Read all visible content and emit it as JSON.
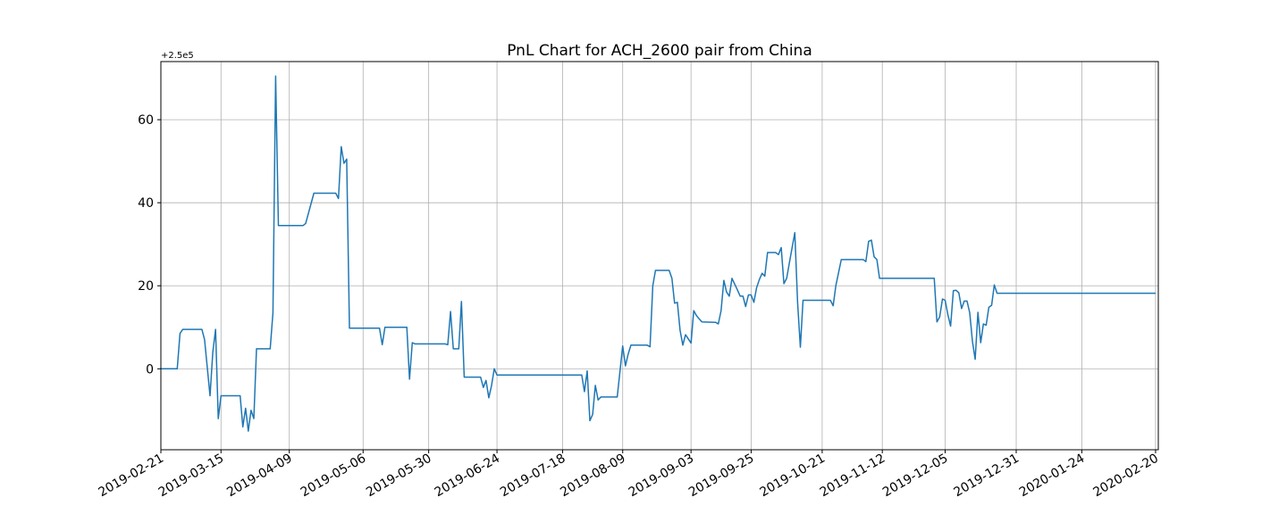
{
  "chart_data": {
    "type": "line",
    "title": "PnL Chart for ACH_2600 pair from China",
    "xlabel": "",
    "ylabel": "",
    "y_offset_label": "+2.5e5",
    "y_offset": 250000,
    "x_type": "date",
    "xlim": [
      "2019-02-21",
      "2020-02-21"
    ],
    "ylim": [
      -19.5,
      74
    ],
    "x_ticks": [
      "2019-02-21",
      "2019-03-15",
      "2019-04-09",
      "2019-05-06",
      "2019-05-30",
      "2019-06-24",
      "2019-07-18",
      "2019-08-09",
      "2019-09-03",
      "2019-09-25",
      "2019-10-21",
      "2019-11-12",
      "2019-12-05",
      "2019-12-31",
      "2020-01-24",
      "2020-02-20"
    ],
    "y_ticks": [
      "0",
      "20",
      "40",
      "60"
    ],
    "y_tick_values": [
      0,
      20,
      40,
      60
    ],
    "grid": true,
    "legend": "none",
    "series": [
      {
        "color": "#1f77b4",
        "points": [
          [
            "2019-02-21",
            0
          ],
          [
            "2019-02-27",
            0
          ],
          [
            "2019-02-28",
            8.5
          ],
          [
            "2019-03-01",
            9.5
          ],
          [
            "2019-03-08",
            9.5
          ],
          [
            "2019-03-09",
            7
          ],
          [
            "2019-03-11",
            -6.5
          ],
          [
            "2019-03-12",
            4
          ],
          [
            "2019-03-13",
            9.5
          ],
          [
            "2019-03-14",
            -12
          ],
          [
            "2019-03-15",
            -6.5
          ],
          [
            "2019-03-22",
            -6.5
          ],
          [
            "2019-03-23",
            -14
          ],
          [
            "2019-03-24",
            -9.5
          ],
          [
            "2019-03-25",
            -15
          ],
          [
            "2019-03-26",
            -10
          ],
          [
            "2019-03-27",
            -12
          ],
          [
            "2019-03-28",
            4.8
          ],
          [
            "2019-04-02",
            4.8
          ],
          [
            "2019-04-03",
            13.5
          ],
          [
            "2019-04-04",
            70.5
          ],
          [
            "2019-04-05",
            34.5
          ],
          [
            "2019-04-14",
            34.5
          ],
          [
            "2019-04-15",
            35
          ],
          [
            "2019-04-18",
            42.3
          ],
          [
            "2019-04-26",
            42.3
          ],
          [
            "2019-04-27",
            41
          ],
          [
            "2019-04-28",
            53.5
          ],
          [
            "2019-04-29",
            49.5
          ],
          [
            "2019-04-30",
            50.5
          ],
          [
            "2019-05-01",
            9.8
          ],
          [
            "2019-05-12",
            9.8
          ],
          [
            "2019-05-13",
            5.8
          ],
          [
            "2019-05-14",
            10
          ],
          [
            "2019-05-22",
            10
          ],
          [
            "2019-05-23",
            -2.5
          ],
          [
            "2019-05-24",
            6.3
          ],
          [
            "2019-05-25",
            6
          ],
          [
            "2019-06-05",
            6
          ],
          [
            "2019-06-06",
            5.8
          ],
          [
            "2019-06-07",
            13.8
          ],
          [
            "2019-06-08",
            4.8
          ],
          [
            "2019-06-10",
            4.8
          ],
          [
            "2019-06-11",
            16.2
          ],
          [
            "2019-06-12",
            -2
          ],
          [
            "2019-06-18",
            -2
          ],
          [
            "2019-06-19",
            -4.5
          ],
          [
            "2019-06-20",
            -2.8
          ],
          [
            "2019-06-21",
            -7
          ],
          [
            "2019-06-22",
            -4
          ],
          [
            "2019-06-23",
            0
          ],
          [
            "2019-06-24",
            -1.5
          ],
          [
            "2019-07-25",
            -1.5
          ],
          [
            "2019-07-26",
            -5.5
          ],
          [
            "2019-07-27",
            -0.5
          ],
          [
            "2019-07-28",
            -12.5
          ],
          [
            "2019-07-29",
            -11
          ],
          [
            "2019-07-30",
            -4
          ],
          [
            "2019-07-31",
            -7.5
          ],
          [
            "2019-08-01",
            -6.8
          ],
          [
            "2019-08-07",
            -6.8
          ],
          [
            "2019-08-09",
            5.5
          ],
          [
            "2019-08-10",
            0.7
          ],
          [
            "2019-08-11",
            3.5
          ],
          [
            "2019-08-12",
            5.7
          ],
          [
            "2019-08-18",
            5.7
          ],
          [
            "2019-08-19",
            5.3
          ],
          [
            "2019-08-20",
            20
          ],
          [
            "2019-08-21",
            23.7
          ],
          [
            "2019-08-26",
            23.7
          ],
          [
            "2019-08-27",
            21.8
          ],
          [
            "2019-08-28",
            15.8
          ],
          [
            "2019-08-29",
            16
          ],
          [
            "2019-08-30",
            9.3
          ],
          [
            "2019-08-31",
            5.7
          ],
          [
            "2019-09-01",
            8.2
          ],
          [
            "2019-09-03",
            6.2
          ],
          [
            "2019-09-04",
            14
          ],
          [
            "2019-09-05",
            12.8
          ],
          [
            "2019-09-06",
            12
          ],
          [
            "2019-09-07",
            11.3
          ],
          [
            "2019-09-12",
            11.2
          ],
          [
            "2019-09-13",
            10.8
          ],
          [
            "2019-09-14",
            14
          ],
          [
            "2019-09-15",
            21.3
          ],
          [
            "2019-09-16",
            18.5
          ],
          [
            "2019-09-17",
            17.5
          ],
          [
            "2019-09-18",
            21.8
          ],
          [
            "2019-09-20",
            19
          ],
          [
            "2019-09-21",
            17.5
          ],
          [
            "2019-09-22",
            17.5
          ],
          [
            "2019-09-23",
            15
          ],
          [
            "2019-09-24",
            17.8
          ],
          [
            "2019-09-25",
            17.8
          ],
          [
            "2019-09-26",
            16
          ],
          [
            "2019-09-27",
            19.5
          ],
          [
            "2019-09-28",
            21.5
          ],
          [
            "2019-09-29",
            23
          ],
          [
            "2019-09-30",
            22.3
          ],
          [
            "2019-10-01",
            28
          ],
          [
            "2019-10-04",
            28
          ],
          [
            "2019-10-05",
            27.5
          ],
          [
            "2019-10-06",
            29.2
          ],
          [
            "2019-10-07",
            20.5
          ],
          [
            "2019-10-08",
            21.8
          ],
          [
            "2019-10-09",
            25.5
          ],
          [
            "2019-10-11",
            32.8
          ],
          [
            "2019-10-12",
            16
          ],
          [
            "2019-10-13",
            5.2
          ],
          [
            "2019-10-14",
            16.5
          ],
          [
            "2019-10-24",
            16.5
          ],
          [
            "2019-10-25",
            15.2
          ],
          [
            "2019-10-26",
            20
          ],
          [
            "2019-10-28",
            26.3
          ],
          [
            "2019-11-05",
            26.3
          ],
          [
            "2019-11-06",
            25.8
          ],
          [
            "2019-11-07",
            30.7
          ],
          [
            "2019-11-08",
            31
          ],
          [
            "2019-11-09",
            27
          ],
          [
            "2019-11-10",
            26.3
          ],
          [
            "2019-11-11",
            21.8
          ],
          [
            "2019-12-01",
            21.8
          ],
          [
            "2019-12-02",
            11.3
          ],
          [
            "2019-12-03",
            12.5
          ],
          [
            "2019-12-04",
            16.8
          ],
          [
            "2019-12-05",
            16.5
          ],
          [
            "2019-12-06",
            13
          ],
          [
            "2019-12-07",
            10.3
          ],
          [
            "2019-12-08",
            18.8
          ],
          [
            "2019-12-09",
            18.9
          ],
          [
            "2019-12-10",
            18.3
          ],
          [
            "2019-12-11",
            14.5
          ],
          [
            "2019-12-12",
            16.3
          ],
          [
            "2019-12-13",
            16.3
          ],
          [
            "2019-12-14",
            13.5
          ],
          [
            "2019-12-15",
            6.5
          ],
          [
            "2019-12-16",
            2.3
          ],
          [
            "2019-12-17",
            13.6
          ],
          [
            "2019-12-18",
            6.3
          ],
          [
            "2019-12-19",
            10.8
          ],
          [
            "2019-12-20",
            10.5
          ],
          [
            "2019-12-21",
            14.8
          ],
          [
            "2019-12-22",
            15.3
          ],
          [
            "2019-12-23",
            20.2
          ],
          [
            "2019-12-24",
            18.2
          ],
          [
            "2020-01-11",
            18.2
          ],
          [
            "2020-01-26",
            18.2
          ],
          [
            "2020-02-20",
            18.2
          ]
        ]
      }
    ]
  }
}
